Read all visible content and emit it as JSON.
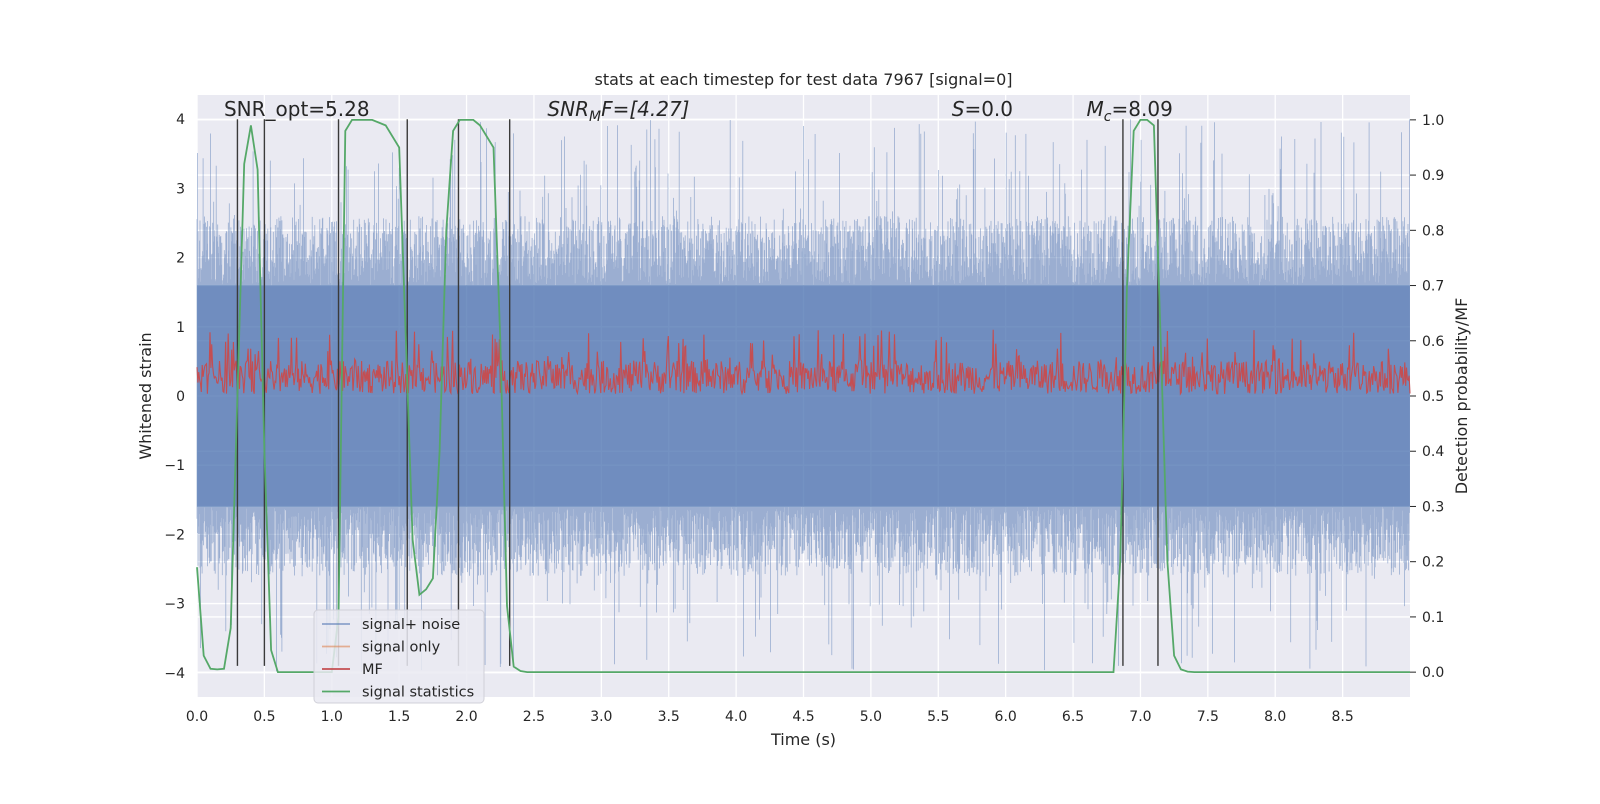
{
  "chart_data": {
    "type": "line",
    "title": "stats at each timestep for test data 7967 [signal=0]",
    "xlabel": "Time (s)",
    "ylabel_left": "Whitened strain",
    "ylabel_right": "Detection probability/MF",
    "xlim": [
      0.0,
      9.0
    ],
    "ylim_left": [
      -4.35,
      4.35
    ],
    "ylim_right": [
      -0.045,
      1.045
    ],
    "x_ticks": [
      "0.0",
      "0.5",
      "1.0",
      "1.5",
      "2.0",
      "2.5",
      "3.0",
      "3.5",
      "4.0",
      "4.5",
      "5.0",
      "5.5",
      "6.0",
      "6.5",
      "7.0",
      "7.5",
      "8.0",
      "8.5"
    ],
    "x_tick_values": [
      0.0,
      0.5,
      1.0,
      1.5,
      2.0,
      2.5,
      3.0,
      3.5,
      4.0,
      4.5,
      5.0,
      5.5,
      6.0,
      6.5,
      7.0,
      7.5,
      8.0,
      8.5
    ],
    "y_ticks_left": [
      "4",
      "3",
      "2",
      "1",
      "0",
      "−1",
      "−2",
      "−3",
      "−4"
    ],
    "y_tick_values_left": [
      4,
      3,
      2,
      1,
      0,
      -1,
      -2,
      -3,
      -4
    ],
    "y_ticks_right": [
      "1.0",
      "0.9",
      "0.8",
      "0.7",
      "0.6",
      "0.5",
      "0.4",
      "0.3",
      "0.2",
      "0.1",
      "0.0"
    ],
    "y_tick_values_right": [
      1.0,
      0.9,
      0.8,
      0.7,
      0.6,
      0.5,
      0.4,
      0.3,
      0.2,
      0.1,
      0.0
    ],
    "grid": true,
    "legend_position": "lower-left",
    "annotations": [
      {
        "text": "SNR_opt=5.28",
        "x": 0.2,
        "y": 4.05
      },
      {
        "main": "SNR",
        "sub": "M",
        "rest": "F=[4.27]",
        "x": 2.6,
        "y": 4.05
      },
      {
        "main": "S",
        "rest": "=0.0",
        "x": 5.6,
        "y": 4.05
      },
      {
        "main": "M",
        "sub": "c",
        "rest": "=8.09",
        "x": 6.6,
        "y": 4.05
      }
    ],
    "detection_lines": [
      0.3,
      0.5,
      1.05,
      1.56,
      1.94,
      2.32,
      6.87,
      7.13
    ],
    "detection_line_range": [
      -3.9,
      4.0
    ],
    "series": [
      {
        "name": "signal+ noise",
        "color": "#4c72b0",
        "axis": "left",
        "description": "whitened strain noise, approx. +/-2.5 range with spikes up to 4",
        "envelope": {
          "inner": 1.6,
          "outer": 2.6,
          "max_spike": 4.0
        }
      },
      {
        "name": "signal only",
        "color": "#dd8452",
        "axis": "left",
        "values": []
      },
      {
        "name": "MF",
        "color": "#c44e52",
        "axis": "right",
        "range": [
          0.5,
          0.62
        ],
        "max_spike": 0.62
      },
      {
        "name": "signal statistics",
        "color": "#55a868",
        "axis": "right",
        "x": [
          0.0,
          0.05,
          0.1,
          0.15,
          0.2,
          0.25,
          0.3,
          0.35,
          0.4,
          0.45,
          0.5,
          0.55,
          0.6,
          0.65,
          0.7,
          0.8,
          0.9,
          1.0,
          1.05,
          1.1,
          1.15,
          1.2,
          1.3,
          1.4,
          1.5,
          1.55,
          1.6,
          1.65,
          1.7,
          1.75,
          1.8,
          1.85,
          1.9,
          1.95,
          2.0,
          2.05,
          2.1,
          2.2,
          2.25,
          2.3,
          2.35,
          2.4,
          2.45,
          2.5,
          2.6,
          3.0,
          4.0,
          5.0,
          6.0,
          6.5,
          6.8,
          6.85,
          6.9,
          6.95,
          7.0,
          7.05,
          7.1,
          7.15,
          7.2,
          7.25,
          7.3,
          7.35,
          7.4,
          7.45,
          7.5,
          8.0,
          8.5,
          9.0
        ],
        "values": [
          0.19,
          0.03,
          0.006,
          0.005,
          0.006,
          0.08,
          0.5,
          0.92,
          0.99,
          0.91,
          0.4,
          0.04,
          0.0,
          0.0,
          0.0,
          0.0,
          0.0,
          0.0,
          0.1,
          0.98,
          1.0,
          1.0,
          1.0,
          0.99,
          0.95,
          0.6,
          0.24,
          0.14,
          0.15,
          0.17,
          0.4,
          0.8,
          0.98,
          1.0,
          1.0,
          1.0,
          0.99,
          0.95,
          0.6,
          0.12,
          0.01,
          0.002,
          0.0,
          0.0,
          0.0,
          0.0,
          0.0,
          0.0,
          0.0,
          0.0,
          0.0,
          0.2,
          0.7,
          0.98,
          1.0,
          1.0,
          0.99,
          0.6,
          0.2,
          0.03,
          0.005,
          0.001,
          0.0,
          0.0,
          0.0,
          0.0,
          0.0,
          0.0
        ]
      }
    ]
  }
}
